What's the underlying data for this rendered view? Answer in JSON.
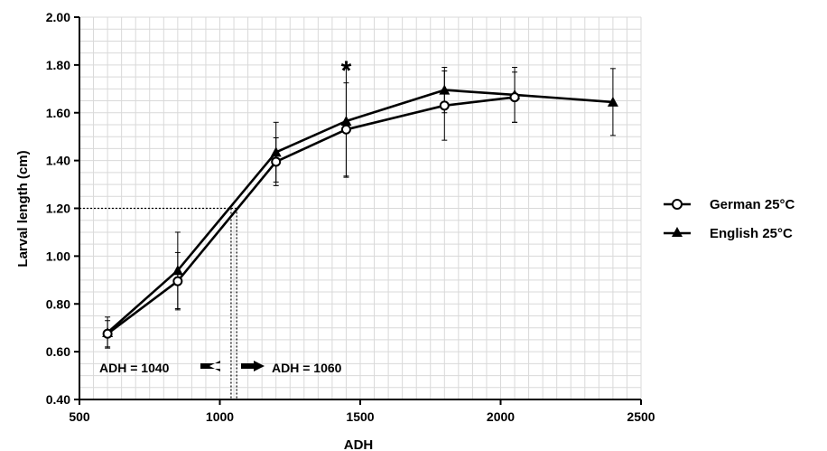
{
  "chart_data": {
    "type": "line",
    "xlabel": "ADH",
    "ylabel": "Larval length (cm)",
    "xlim": [
      500,
      2500
    ],
    "ylim": [
      0.4,
      2.0
    ],
    "x_ticks": [
      500,
      1000,
      1500,
      2000,
      2500
    ],
    "x_tick_labels": [
      "500",
      "1000",
      "1500",
      "2000",
      "2500"
    ],
    "y_ticks": [
      0.4,
      0.6,
      0.8,
      1.0,
      1.2,
      1.4,
      1.6,
      1.8,
      2.0
    ],
    "y_tick_labels": [
      "0.40",
      "0.60",
      "0.80",
      "1.00",
      "1.20",
      "1.40",
      "1.60",
      "1.80",
      "2.00"
    ],
    "grid": true,
    "legend_position": "right",
    "series": [
      {
        "name": "German 25°C",
        "marker": "open-circle",
        "points": [
          {
            "x": 600,
            "y": 0.675,
            "err": 0.055
          },
          {
            "x": 850,
            "y": 0.895,
            "err": 0.12
          },
          {
            "x": 1200,
            "y": 1.395,
            "err": 0.1
          },
          {
            "x": 1450,
            "y": 1.53,
            "err": 0.195
          },
          {
            "x": 1800,
            "y": 1.63,
            "err": 0.145
          },
          {
            "x": 2050,
            "y": 1.665,
            "err": 0.105
          }
        ]
      },
      {
        "name": "English 25°C",
        "marker": "filled-triangle",
        "points": [
          {
            "x": 600,
            "y": 0.68,
            "err": 0.065
          },
          {
            "x": 850,
            "y": 0.94,
            "err": 0.16
          },
          {
            "x": 1200,
            "y": 1.435,
            "err": 0.125
          },
          {
            "x": 1450,
            "y": 1.565,
            "err": 0.235
          },
          {
            "x": 1800,
            "y": 1.695,
            "err": 0.095
          },
          {
            "x": 2050,
            "y": 1.675,
            "err": 0.115
          },
          {
            "x": 2400,
            "y": 1.645,
            "err": 0.14
          }
        ]
      }
    ],
    "significance": {
      "label": "*",
      "x": 1450
    },
    "reference_line": {
      "y": 1.2,
      "x_values": [
        1040,
        1060
      ]
    },
    "annotations": [
      "ADH = 1040",
      "ADH = 1060"
    ]
  },
  "colors": {
    "line": "#000000",
    "grid": "#d9d9d9",
    "background": "#ffffff"
  }
}
